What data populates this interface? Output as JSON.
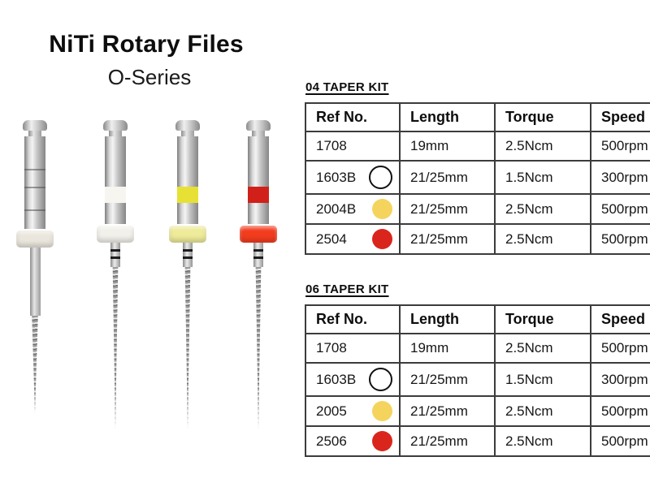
{
  "header": {
    "title": "NiTi Rotary Files",
    "subtitle": "O-Series"
  },
  "figure": {
    "files": [
      {
        "id": "plain-file",
        "band": "",
        "collar": "#ebe6dd"
      },
      {
        "id": "white-file",
        "band": "#f7f5f0",
        "collar": "#f2f0ea"
      },
      {
        "id": "yellow-file",
        "band": "#e7e135",
        "collar": "#eeeb9a"
      },
      {
        "id": "red-file",
        "band": "#d12019",
        "collar": "#f33c1e"
      }
    ]
  },
  "tables": [
    {
      "heading": "04 TAPER KIT",
      "columns": [
        "Ref No.",
        "Length",
        "Torque",
        "Speed"
      ],
      "rows": [
        {
          "ref": "1708",
          "marker": "none",
          "length": "19mm",
          "torque": "2.5Ncm",
          "speed": "500rpm"
        },
        {
          "ref": "1603B",
          "marker": "white",
          "length": "21/25mm",
          "torque": "1.5Ncm",
          "speed": "300rpm"
        },
        {
          "ref": "2004B",
          "marker": "yellow",
          "length": "21/25mm",
          "torque": "2.5Ncm",
          "speed": "500rpm"
        },
        {
          "ref": "2504",
          "marker": "red",
          "length": "21/25mm",
          "torque": "2.5Ncm",
          "speed": "500rpm"
        }
      ]
    },
    {
      "heading": "06 TAPER KIT",
      "columns": [
        "Ref No.",
        "Length",
        "Torque",
        "Speed"
      ],
      "rows": [
        {
          "ref": "1708",
          "marker": "none",
          "length": "19mm",
          "torque": "2.5Ncm",
          "speed": "500rpm"
        },
        {
          "ref": "1603B",
          "marker": "white",
          "length": "21/25mm",
          "torque": "1.5Ncm",
          "speed": "300rpm"
        },
        {
          "ref": "2005",
          "marker": "yellow",
          "length": "21/25mm",
          "torque": "2.5Ncm",
          "speed": "500rpm"
        },
        {
          "ref": "2506",
          "marker": "red",
          "length": "21/25mm",
          "torque": "2.5Ncm",
          "speed": "500rpm"
        }
      ]
    }
  ],
  "colors": {
    "marker_yellow": "#f5d45e",
    "marker_red": "#da251d",
    "marker_white_border": "#111111",
    "table_border": "#3c3c3c",
    "text": "#141414"
  }
}
